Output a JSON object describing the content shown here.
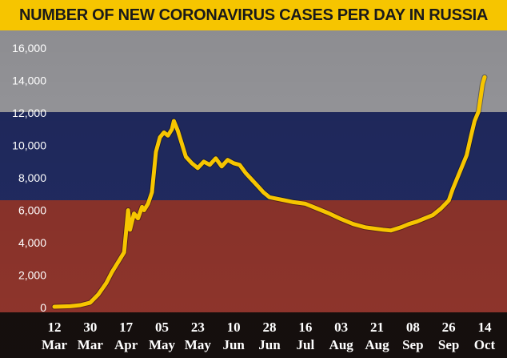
{
  "colors": {
    "title_bg": "#f6c500",
    "line": "#f6c500",
    "flag_white": "#e9e9ee",
    "flag_blue": "#2f3f8f",
    "flag_red": "#c84a3e",
    "background": "#1a1a1a"
  },
  "chart_data": {
    "type": "line",
    "title": "NUMBER OF NEW CORONAVIRUS CASES PER DAY IN RUSSIA",
    "xlabel": "",
    "ylabel": "",
    "ylim": [
      0,
      16000
    ],
    "yticks": [
      0,
      2000,
      4000,
      6000,
      8000,
      10000,
      12000,
      14000,
      16000
    ],
    "ytick_labels": [
      "0",
      "2,000",
      "4,000",
      "6,000",
      "8,000",
      "10,000",
      "12,000",
      "14,000",
      "16,000"
    ],
    "grid": false,
    "legend": "none",
    "xticks": [
      {
        "day": "12",
        "month": "Mar",
        "date": "2020-03-12"
      },
      {
        "day": "30",
        "month": "Mar",
        "date": "2020-03-30"
      },
      {
        "day": "17",
        "month": "Apr",
        "date": "2020-04-17"
      },
      {
        "day": "05",
        "month": "May",
        "date": "2020-05-05"
      },
      {
        "day": "23",
        "month": "May",
        "date": "2020-05-23"
      },
      {
        "day": "10",
        "month": "Jun",
        "date": "2020-06-10"
      },
      {
        "day": "28",
        "month": "Jun",
        "date": "2020-06-28"
      },
      {
        "day": "16",
        "month": "Jul",
        "date": "2020-07-16"
      },
      {
        "day": "03",
        "month": "Aug",
        "date": "2020-08-03"
      },
      {
        "day": "21",
        "month": "Aug",
        "date": "2020-08-21"
      },
      {
        "day": "08",
        "month": "Sep",
        "date": "2020-09-08"
      },
      {
        "day": "26",
        "month": "Sep",
        "date": "2020-09-26"
      },
      {
        "day": "14",
        "month": "Oct",
        "date": "2020-10-14"
      }
    ],
    "series": [
      {
        "x": [
          "2020-03-12",
          "2020-03-20",
          "2020-03-25",
          "2020-03-30",
          "2020-04-03",
          "2020-04-07",
          "2020-04-10",
          "2020-04-13",
          "2020-04-16",
          "2020-04-18",
          "2020-04-19",
          "2020-04-21",
          "2020-04-23",
          "2020-04-25",
          "2020-04-26",
          "2020-04-28",
          "2020-04-30",
          "2020-05-02",
          "2020-05-04",
          "2020-05-06",
          "2020-05-08",
          "2020-05-10",
          "2020-05-11",
          "2020-05-13",
          "2020-05-15",
          "2020-05-17",
          "2020-05-20",
          "2020-05-23",
          "2020-05-26",
          "2020-05-29",
          "2020-06-01",
          "2020-06-04",
          "2020-06-07",
          "2020-06-10",
          "2020-06-13",
          "2020-06-16",
          "2020-06-19",
          "2020-06-22",
          "2020-06-25",
          "2020-06-28",
          "2020-07-02",
          "2020-07-06",
          "2020-07-10",
          "2020-07-16",
          "2020-07-22",
          "2020-07-28",
          "2020-08-03",
          "2020-08-09",
          "2020-08-15",
          "2020-08-21",
          "2020-08-24",
          "2020-08-28",
          "2020-09-02",
          "2020-09-06",
          "2020-09-10",
          "2020-09-14",
          "2020-09-18",
          "2020-09-22",
          "2020-09-26",
          "2020-09-28",
          "2020-10-01",
          "2020-10-03",
          "2020-10-05",
          "2020-10-07",
          "2020-10-09",
          "2020-10-11",
          "2020-10-13",
          "2020-10-14"
        ],
        "values": [
          50,
          80,
          150,
          300,
          800,
          1500,
          2200,
          2800,
          3400,
          6000,
          4800,
          5800,
          5500,
          6200,
          6000,
          6400,
          7100,
          9600,
          10500,
          10800,
          10600,
          11000,
          11500,
          10900,
          10100,
          9300,
          8900,
          8600,
          9000,
          8800,
          9200,
          8700,
          9100,
          8900,
          8800,
          8300,
          7900,
          7500,
          7100,
          6800,
          6700,
          6600,
          6500,
          6400,
          6100,
          5800,
          5450,
          5150,
          4950,
          4850,
          4800,
          4750,
          4950,
          5150,
          5300,
          5500,
          5700,
          6100,
          6600,
          7300,
          8200,
          8800,
          9400,
          10500,
          11500,
          12100,
          13800,
          14200
        ]
      }
    ]
  }
}
